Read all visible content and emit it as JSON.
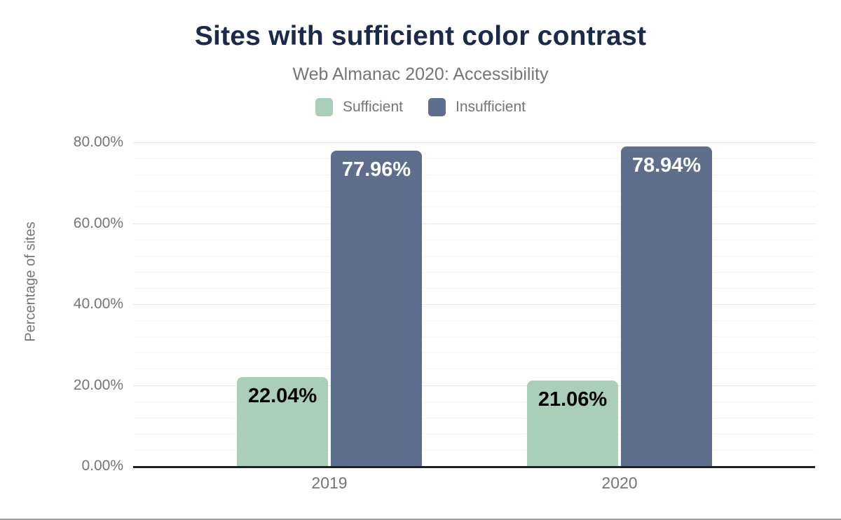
{
  "figure": {
    "title": "Sites with sufficient color contrast",
    "subtitle": "Web Almanac 2020: Accessibility"
  },
  "legend": {
    "items": [
      {
        "label": "Sufficient",
        "color": "#a9ceba"
      },
      {
        "label": "Insufficient",
        "color": "#5f6e8c"
      }
    ]
  },
  "colors": {
    "title": "#1c2a49",
    "muted_text": "#757575",
    "axis_line": "#212121",
    "major_gridline": "#e7e7e7",
    "minor_gridline": "#f4f4f4",
    "sufficient": "#a9ceba",
    "insufficient": "#5f6e8c"
  },
  "chart_data": {
    "type": "bar",
    "title": "Sites with sufficient color contrast",
    "subtitle": "Web Almanac 2020: Accessibility",
    "categories": [
      "2019",
      "2020"
    ],
    "series": [
      {
        "name": "Sufficient",
        "color": "#a9ceba",
        "label_color": "#000000",
        "values": [
          22.04,
          21.06
        ],
        "labels": [
          "22.04%",
          "21.06%"
        ]
      },
      {
        "name": "Insufficient",
        "color": "#5f6e8c",
        "label_color": "#ffffff",
        "values": [
          77.96,
          78.94
        ],
        "labels": [
          "77.96%",
          "78.94%"
        ]
      }
    ],
    "xlabel": "",
    "ylabel": "Percentage of sites",
    "ylim": [
      0,
      80
    ],
    "yticks": [
      {
        "value": 0,
        "label": "0.00%"
      },
      {
        "value": 20,
        "label": "20.00%"
      },
      {
        "value": 40,
        "label": "40.00%"
      },
      {
        "value": 60,
        "label": "60.00%"
      },
      {
        "value": 80,
        "label": "80.00%"
      }
    ],
    "minor_grid_step": 4,
    "grid": "horizontal",
    "legend_position": "top",
    "value_labels": "inside-top"
  }
}
